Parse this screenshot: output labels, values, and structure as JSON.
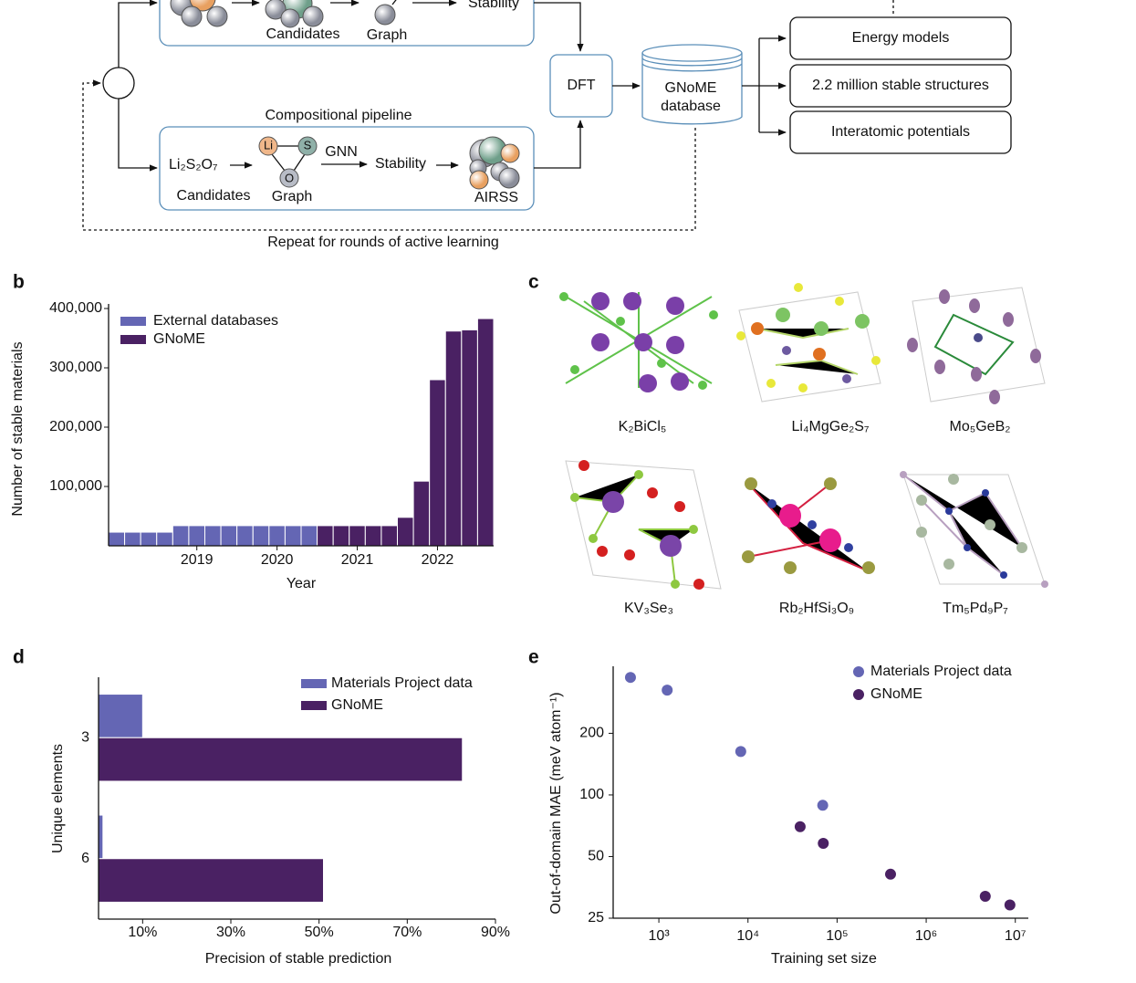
{
  "diagram": {
    "top_pipeline": {
      "candidates": "Candidates",
      "graph": "Graph",
      "stability": "Stability"
    },
    "compositional_pipeline": {
      "title": "Compositional pipeline",
      "formula": "Li₂S₂O₇",
      "candidates": "Candidates",
      "graph": "Graph",
      "node_li": "Li",
      "node_s": "S",
      "node_o": "O",
      "gnn": "GNN",
      "stability": "Stability",
      "airss": "AIRSS"
    },
    "dft": "DFT",
    "database": [
      "GNoME",
      "database"
    ],
    "outputs": [
      "Energy models",
      "2.2 million stable structures",
      "Interatomic potentials"
    ],
    "loop": "Repeat for rounds of active learning"
  },
  "panel_labels": {
    "b": "b",
    "c": "c",
    "d": "d",
    "e": "e"
  },
  "structures": [
    "K₂BiCl₅",
    "Li₄MgGe₂S₇",
    "Mo₅GeB₂",
    "KV₃Se₃",
    "Rb₂HfSi₃O₉",
    "Tm₅Pd₉P₇"
  ],
  "chart_data": [
    {
      "type": "bar",
      "x_label": "Year",
      "y_label": "Number of stable materials",
      "x": [
        2018.0,
        2018.2,
        2018.4,
        2018.6,
        2018.8,
        2019.0,
        2019.2,
        2019.4,
        2019.6,
        2019.8,
        2020.0,
        2020.2,
        2020.4,
        2020.6,
        2020.8,
        2021.0,
        2021.2,
        2021.4,
        2021.6,
        2021.8,
        2022.0,
        2022.2,
        2022.4,
        2022.6
      ],
      "series": [
        {
          "name": "External databases",
          "color": "#6466b4",
          "values": [
            23000,
            23000,
            23000,
            23000,
            34000,
            34000,
            34000,
            34000,
            34000,
            34000,
            34000,
            34000,
            34000,
            null,
            null,
            null,
            null,
            null,
            null,
            null,
            null,
            null,
            null,
            null
          ]
        },
        {
          "name": "GNoME",
          "color": "#4a2163",
          "values": [
            null,
            null,
            null,
            null,
            null,
            null,
            null,
            null,
            null,
            null,
            null,
            null,
            null,
            34000,
            34000,
            34000,
            34000,
            34000,
            48000,
            109000,
            280000,
            362000,
            364000,
            383000
          ]
        }
      ],
      "xlim": [
        2017.9,
        2022.7
      ],
      "xticks": [
        2019,
        2020,
        2021,
        2022
      ],
      "ylim": [
        0,
        400000
      ],
      "yticks": [
        {
          "value": 100000,
          "label": "100,000"
        },
        {
          "value": 200000,
          "label": "200,000"
        },
        {
          "value": 300000,
          "label": "300,000"
        },
        {
          "value": 400000,
          "label": "400,000"
        }
      ],
      "legend": "upper left"
    },
    {
      "type": "barh",
      "x_label": "Precision of stable prediction",
      "y_label": "Unique elements",
      "categories": [
        "3",
        "6"
      ],
      "series": [
        {
          "name": "Materials Project data",
          "color": "#6466b4",
          "values": [
            10,
            1
          ]
        },
        {
          "name": "GNoME",
          "color": "#4a2163",
          "values": [
            82.5,
            51
          ]
        }
      ],
      "xlim": [
        0,
        90
      ],
      "xticks": [
        {
          "value": 10,
          "label": "10%"
        },
        {
          "value": 30,
          "label": "30%"
        },
        {
          "value": 50,
          "label": "50%"
        },
        {
          "value": 70,
          "label": "70%"
        },
        {
          "value": 90,
          "label": "90%"
        }
      ],
      "legend": "upper right"
    },
    {
      "type": "scatter",
      "x_label": "Training set size",
      "y_label": "Out-of-domain MAE (meV atom⁻¹)",
      "log_x": true,
      "log_y": true,
      "series": [
        {
          "name": "Materials Project data",
          "color": "#6466b4",
          "x": [
            480,
            1240,
            8300,
            69000
          ],
          "values": [
            375,
            325,
            163,
            89
          ]
        },
        {
          "name": "GNoME",
          "color": "#4a2163",
          "x": [
            38500,
            70000,
            398000,
            4600000,
            8700000
          ],
          "values": [
            70,
            58,
            41,
            32,
            29
          ]
        }
      ],
      "xlim": [
        307,
        14000000
      ],
      "xticks": [
        {
          "value": 1000,
          "label": "10³"
        },
        {
          "value": 10000,
          "label": "10⁴"
        },
        {
          "value": 100000,
          "label": "10⁵"
        },
        {
          "value": 1000000,
          "label": "10⁶"
        },
        {
          "value": 10000000,
          "label": "10⁷"
        }
      ],
      "ylim": [
        25,
        425
      ],
      "yticks": [
        25,
        50,
        100,
        200
      ],
      "legend": "upper right"
    }
  ]
}
